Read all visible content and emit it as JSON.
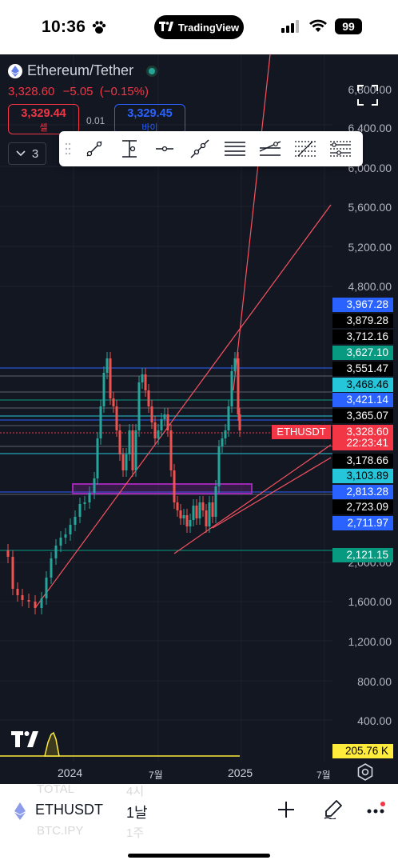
{
  "status_bar": {
    "time": "10:36",
    "app_pill": "TradingView",
    "battery": "99"
  },
  "symbol": {
    "title": "Ethereum/Tether",
    "last_price": "3,328.60",
    "change": "−5.05",
    "change_pct": "(−0.15%)",
    "sell_price": "3,329.44",
    "sell_label": "셀",
    "buy_price": "3,329.45",
    "buy_label": "바이",
    "spread": "0.01",
    "layers_count": "3"
  },
  "price_axis": {
    "labels": [
      "6,800.00",
      "6,400.00",
      "6,000.00",
      "5,600.00",
      "5,200.00",
      "4,800.00",
      "2,000.00",
      "1,600.00",
      "1,200.00",
      "800.00",
      "400.00"
    ]
  },
  "price_tags": [
    {
      "text": "3,967.28",
      "bg": "#2962ff",
      "fg": "#ffffff"
    },
    {
      "text": "3,879.28",
      "bg": "#000000",
      "fg": "#ffffff"
    },
    {
      "text": "3,712.16",
      "bg": "#000000",
      "fg": "#ffffff"
    },
    {
      "text": "3,627.10",
      "bg": "#089981",
      "fg": "#ffffff"
    },
    {
      "text": "3,551.47",
      "bg": "#000000",
      "fg": "#ffffff"
    },
    {
      "text": "3,468.46",
      "bg": "#26c6da",
      "fg": "#000000"
    },
    {
      "text": "3,421.14",
      "bg": "#2962ff",
      "fg": "#ffffff"
    },
    {
      "text": "3,365.07",
      "bg": "#000000",
      "fg": "#ffffff"
    },
    {
      "text": "3,328.60",
      "bg": "#f23645",
      "fg": "#ffffff"
    },
    {
      "text": "22:23:41",
      "bg": "#f23645",
      "fg": "#ffffff"
    },
    {
      "text": "3,178.66",
      "bg": "#000000",
      "fg": "#ffffff"
    },
    {
      "text": "3,103.89",
      "bg": "#26c6da",
      "fg": "#000000"
    },
    {
      "text": "2,813.28",
      "bg": "#2962ff",
      "fg": "#ffffff"
    },
    {
      "text": "2,723.09",
      "bg": "#000000",
      "fg": "#ffffff"
    },
    {
      "text": "2,711.97",
      "bg": "#2962ff",
      "fg": "#ffffff"
    },
    {
      "text": "2,121.15",
      "bg": "#089981",
      "fg": "#ffffff"
    },
    {
      "text": "205.76 K",
      "bg": "#ffeb3b",
      "fg": "#000000"
    }
  ],
  "ticker_label": "ETHUSDT",
  "time_axis": {
    "labels": [
      "2024",
      "7월",
      "2025",
      "7월"
    ]
  },
  "bottom_bar": {
    "symbol": "ETHUSDT",
    "interval": "1날",
    "ghost_top_left": "TOTAL",
    "ghost_top_right": "4시",
    "ghost_bottom_left": "BTC.IPY",
    "ghost_bottom_right": "1주"
  },
  "toolbar": {
    "tools": [
      "trend-line-icon",
      "vertical-measure-icon",
      "horizontal-ray-icon",
      "extended-line-icon",
      "parallel-channel-icon",
      "regression-channel-icon",
      "fib-retracement-icon",
      "fib-extension-icon"
    ]
  }
}
